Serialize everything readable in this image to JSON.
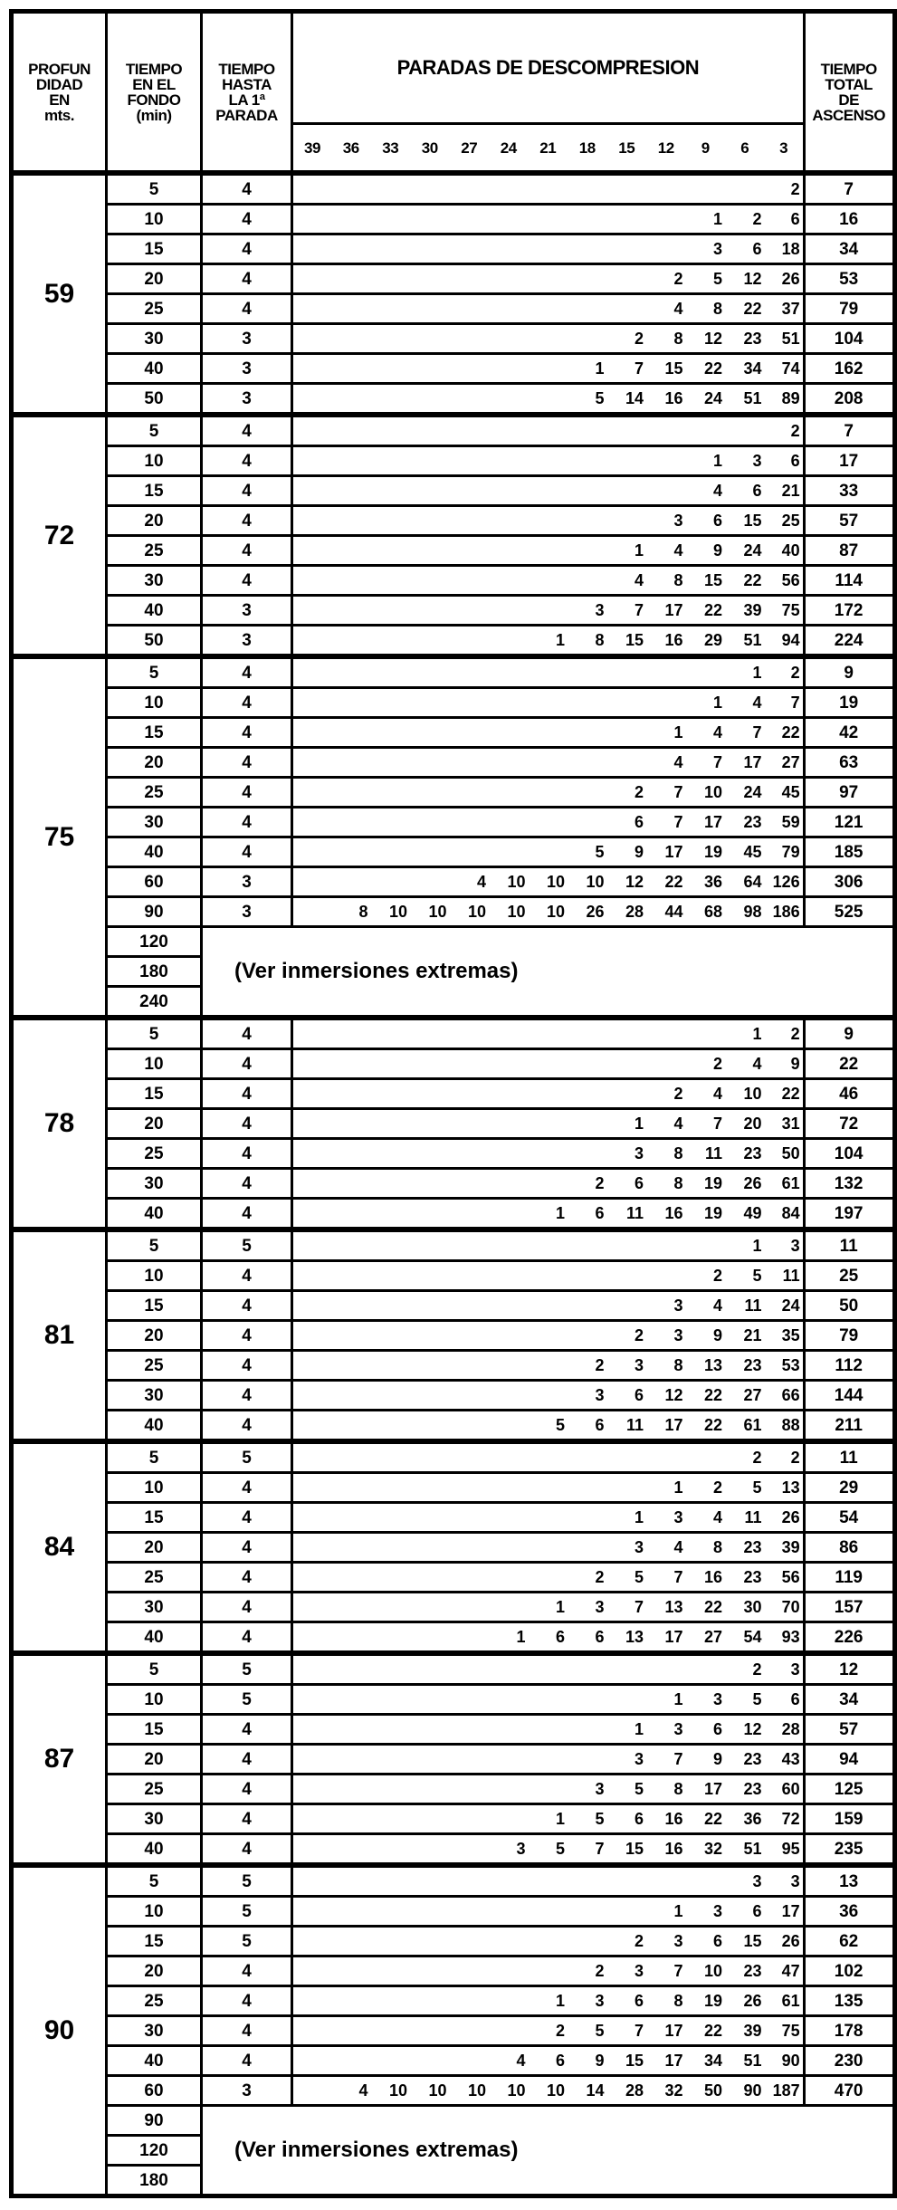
{
  "header": {
    "depth": [
      "PROFUN",
      "DIDAD",
      "EN",
      "mts."
    ],
    "bottom_time": [
      "TIEMPO",
      "EN EL",
      "FONDO",
      "(min)"
    ],
    "time_to_first_stop": [
      "TIEMPO",
      "HASTA",
      "LA 1ª",
      "PARADA"
    ],
    "stops_title": "PARADAS DE DESCOMPRESION",
    "stop_depths": [
      "39",
      "36",
      "33",
      "30",
      "27",
      "24",
      "21",
      "18",
      "15",
      "12",
      "9",
      "6",
      "3"
    ],
    "total_ascent": [
      "TIEMPO",
      "TOTAL",
      "DE",
      "ASCENSO"
    ]
  },
  "extreme_note": "(Ver inmersiones extremas)",
  "groups": [
    {
      "depth": "59",
      "rows": [
        {
          "time": "5",
          "first": "4",
          "stops": [
            "2"
          ],
          "total": "7"
        },
        {
          "time": "10",
          "first": "4",
          "stops": [
            "1",
            "2",
            "6"
          ],
          "total": "16"
        },
        {
          "time": "15",
          "first": "4",
          "stops": [
            "3",
            "6",
            "18"
          ],
          "total": "34"
        },
        {
          "time": "20",
          "first": "4",
          "stops": [
            "2",
            "5",
            "12",
            "26"
          ],
          "total": "53"
        },
        {
          "time": "25",
          "first": "4",
          "stops": [
            "4",
            "8",
            "22",
            "37"
          ],
          "total": "79"
        },
        {
          "time": "30",
          "first": "3",
          "stops": [
            "2",
            "8",
            "12",
            "23",
            "51"
          ],
          "total": "104"
        },
        {
          "time": "40",
          "first": "3",
          "stops": [
            "1",
            "7",
            "15",
            "22",
            "34",
            "74"
          ],
          "total": "162"
        },
        {
          "time": "50",
          "first": "3",
          "stops": [
            "5",
            "14",
            "16",
            "24",
            "51",
            "89"
          ],
          "total": "208"
        }
      ],
      "extreme": []
    },
    {
      "depth": "72",
      "rows": [
        {
          "time": "5",
          "first": "4",
          "stops": [
            "2"
          ],
          "total": "7"
        },
        {
          "time": "10",
          "first": "4",
          "stops": [
            "1",
            "3",
            "6"
          ],
          "total": "17"
        },
        {
          "time": "15",
          "first": "4",
          "stops": [
            "4",
            "6",
            "21"
          ],
          "total": "33"
        },
        {
          "time": "20",
          "first": "4",
          "stops": [
            "3",
            "6",
            "15",
            "25"
          ],
          "total": "57"
        },
        {
          "time": "25",
          "first": "4",
          "stops": [
            "1",
            "4",
            "9",
            "24",
            "40"
          ],
          "total": "87"
        },
        {
          "time": "30",
          "first": "4",
          "stops": [
            "4",
            "8",
            "15",
            "22",
            "56"
          ],
          "total": "114"
        },
        {
          "time": "40",
          "first": "3",
          "stops": [
            "3",
            "7",
            "17",
            "22",
            "39",
            "75"
          ],
          "total": "172"
        },
        {
          "time": "50",
          "first": "3",
          "stops": [
            "1",
            "8",
            "15",
            "16",
            "29",
            "51",
            "94"
          ],
          "total": "224"
        }
      ],
      "extreme": []
    },
    {
      "depth": "75",
      "rows": [
        {
          "time": "5",
          "first": "4",
          "stops": [
            "1",
            "2"
          ],
          "total": "9"
        },
        {
          "time": "10",
          "first": "4",
          "stops": [
            "1",
            "4",
            "7"
          ],
          "total": "19"
        },
        {
          "time": "15",
          "first": "4",
          "stops": [
            "1",
            "4",
            "7",
            "22"
          ],
          "total": "42"
        },
        {
          "time": "20",
          "first": "4",
          "stops": [
            "4",
            "7",
            "17",
            "27"
          ],
          "total": "63"
        },
        {
          "time": "25",
          "first": "4",
          "stops": [
            "2",
            "7",
            "10",
            "24",
            "45"
          ],
          "total": "97"
        },
        {
          "time": "30",
          "first": "4",
          "stops": [
            "6",
            "7",
            "17",
            "23",
            "59"
          ],
          "total": "121"
        },
        {
          "time": "40",
          "first": "4",
          "stops": [
            "5",
            "9",
            "17",
            "19",
            "45",
            "79"
          ],
          "total": "185"
        },
        {
          "time": "60",
          "first": "3",
          "stops": [
            "4",
            "10",
            "10",
            "10",
            "12",
            "22",
            "36",
            "64",
            "126"
          ],
          "total": "306"
        },
        {
          "time": "90",
          "first": "3",
          "stops": [
            "8",
            "10",
            "10",
            "10",
            "10",
            "10",
            "26",
            "28",
            "44",
            "68",
            "98",
            "186"
          ],
          "total": "525"
        }
      ],
      "extreme": [
        "120",
        "180",
        "240"
      ]
    },
    {
      "depth": "78",
      "rows": [
        {
          "time": "5",
          "first": "4",
          "stops": [
            "1",
            "2"
          ],
          "total": "9"
        },
        {
          "time": "10",
          "first": "4",
          "stops": [
            "2",
            "4",
            "9"
          ],
          "total": "22"
        },
        {
          "time": "15",
          "first": "4",
          "stops": [
            "2",
            "4",
            "10",
            "22"
          ],
          "total": "46"
        },
        {
          "time": "20",
          "first": "4",
          "stops": [
            "1",
            "4",
            "7",
            "20",
            "31"
          ],
          "total": "72"
        },
        {
          "time": "25",
          "first": "4",
          "stops": [
            "3",
            "8",
            "11",
            "23",
            "50"
          ],
          "total": "104"
        },
        {
          "time": "30",
          "first": "4",
          "stops": [
            "2",
            "6",
            "8",
            "19",
            "26",
            "61"
          ],
          "total": "132"
        },
        {
          "time": "40",
          "first": "4",
          "stops": [
            "1",
            "6",
            "11",
            "16",
            "19",
            "49",
            "84"
          ],
          "total": "197"
        }
      ],
      "extreme": []
    },
    {
      "depth": "81",
      "rows": [
        {
          "time": "5",
          "first": "5",
          "stops": [
            "1",
            "3"
          ],
          "total": "11"
        },
        {
          "time": "10",
          "first": "4",
          "stops": [
            "2",
            "5",
            "11"
          ],
          "total": "25"
        },
        {
          "time": "15",
          "first": "4",
          "stops": [
            "3",
            "4",
            "11",
            "24"
          ],
          "total": "50"
        },
        {
          "time": "20",
          "first": "4",
          "stops": [
            "2",
            "3",
            "9",
            "21",
            "35"
          ],
          "total": "79"
        },
        {
          "time": "25",
          "first": "4",
          "stops": [
            "2",
            "3",
            "8",
            "13",
            "23",
            "53"
          ],
          "total": "112"
        },
        {
          "time": "30",
          "first": "4",
          "stops": [
            "3",
            "6",
            "12",
            "22",
            "27",
            "66"
          ],
          "total": "144"
        },
        {
          "time": "40",
          "first": "4",
          "stops": [
            "5",
            "6",
            "11",
            "17",
            "22",
            "61",
            "88"
          ],
          "total": "211"
        }
      ],
      "extreme": []
    },
    {
      "depth": "84",
      "rows": [
        {
          "time": "5",
          "first": "5",
          "stops": [
            "2",
            "2"
          ],
          "total": "11"
        },
        {
          "time": "10",
          "first": "4",
          "stops": [
            "1",
            "2",
            "5",
            "13"
          ],
          "total": "29"
        },
        {
          "time": "15",
          "first": "4",
          "stops": [
            "1",
            "3",
            "4",
            "11",
            "26"
          ],
          "total": "54"
        },
        {
          "time": "20",
          "first": "4",
          "stops": [
            "3",
            "4",
            "8",
            "23",
            "39"
          ],
          "total": "86"
        },
        {
          "time": "25",
          "first": "4",
          "stops": [
            "2",
            "5",
            "7",
            "16",
            "23",
            "56"
          ],
          "total": "119"
        },
        {
          "time": "30",
          "first": "4",
          "stops": [
            "1",
            "3",
            "7",
            "13",
            "22",
            "30",
            "70"
          ],
          "total": "157"
        },
        {
          "time": "40",
          "first": "4",
          "stops": [
            "1",
            "6",
            "6",
            "13",
            "17",
            "27",
            "54",
            "93"
          ],
          "total": "226"
        }
      ],
      "extreme": []
    },
    {
      "depth": "87",
      "rows": [
        {
          "time": "5",
          "first": "5",
          "stops": [
            "2",
            "3"
          ],
          "total": "12"
        },
        {
          "time": "10",
          "first": "5",
          "stops": [
            "1",
            "3",
            "5",
            "6"
          ],
          "total": "34"
        },
        {
          "time": "15",
          "first": "4",
          "stops": [
            "1",
            "3",
            "6",
            "12",
            "28"
          ],
          "total": "57"
        },
        {
          "time": "20",
          "first": "4",
          "stops": [
            "3",
            "7",
            "9",
            "23",
            "43"
          ],
          "total": "94"
        },
        {
          "time": "25",
          "first": "4",
          "stops": [
            "3",
            "5",
            "8",
            "17",
            "23",
            "60"
          ],
          "total": "125"
        },
        {
          "time": "30",
          "first": "4",
          "stops": [
            "1",
            "5",
            "6",
            "16",
            "22",
            "36",
            "72"
          ],
          "total": "159"
        },
        {
          "time": "40",
          "first": "4",
          "stops": [
            "3",
            "5",
            "7",
            "15",
            "16",
            "32",
            "51",
            "95"
          ],
          "total": "235"
        }
      ],
      "extreme": []
    },
    {
      "depth": "90",
      "rows": [
        {
          "time": "5",
          "first": "5",
          "stops": [
            "3",
            "3"
          ],
          "total": "13"
        },
        {
          "time": "10",
          "first": "5",
          "stops": [
            "1",
            "3",
            "6",
            "17"
          ],
          "total": "36"
        },
        {
          "time": "15",
          "first": "5",
          "stops": [
            "2",
            "3",
            "6",
            "15",
            "26"
          ],
          "total": "62"
        },
        {
          "time": "20",
          "first": "4",
          "stops": [
            "2",
            "3",
            "7",
            "10",
            "23",
            "47"
          ],
          "total": "102"
        },
        {
          "time": "25",
          "first": "4",
          "stops": [
            "1",
            "3",
            "6",
            "8",
            "19",
            "26",
            "61"
          ],
          "total": "135"
        },
        {
          "time": "30",
          "first": "4",
          "stops": [
            "2",
            "5",
            "7",
            "17",
            "22",
            "39",
            "75"
          ],
          "total": "178"
        },
        {
          "time": "40",
          "first": "4",
          "stops": [
            "4",
            "6",
            "9",
            "15",
            "17",
            "34",
            "51",
            "90"
          ],
          "total": "230"
        },
        {
          "time": "60",
          "first": "3",
          "stops": [
            "4",
            "10",
            "10",
            "10",
            "10",
            "10",
            "14",
            "28",
            "32",
            "50",
            "90",
            "187"
          ],
          "total": "470"
        }
      ],
      "extreme": [
        "90",
        "120",
        "180"
      ]
    }
  ]
}
